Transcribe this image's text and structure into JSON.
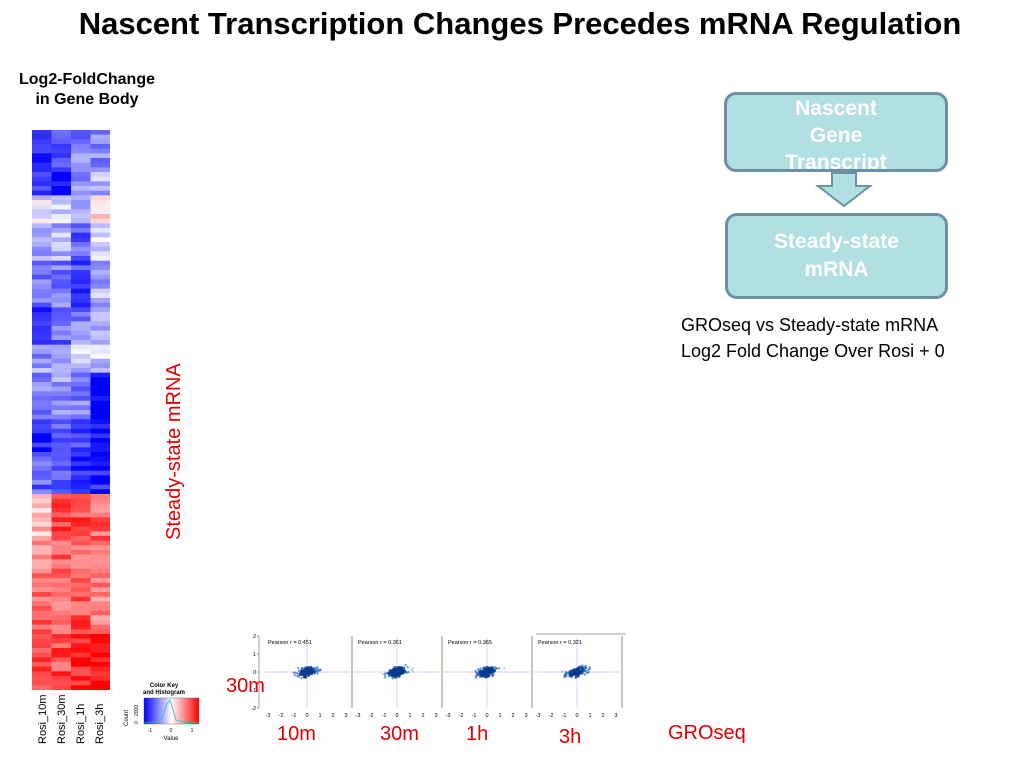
{
  "title": "Nascent Transcription Changes Precedes mRNA Regulation",
  "heatmap": {
    "title_line1": "Log2-FoldChange",
    "title_line2": "in Gene Body",
    "column_labels": [
      "Rosi_10m",
      "Rosi_30m",
      "Rosi_1h",
      "Rosi_3h"
    ]
  },
  "y_axis_label": "Steady-state mRNA",
  "flow": {
    "box1_lines": [
      "Nascent",
      "Gene",
      "Transcript"
    ],
    "box2_lines": [
      "Steady-state",
      "mRNA"
    ]
  },
  "caption": {
    "line1": "GROseq vs Steady-state mRNA",
    "line2": "Log2 Fold Change Over Rosi + 0"
  },
  "row_label": "30m",
  "x_time_labels": [
    "10m",
    "30m",
    "1h",
    "3h"
  ],
  "x_axis_label": "GROseq",
  "color_key": {
    "title_line1": "Color Key",
    "title_line2": "and Histogram",
    "ylabel": "Count",
    "y_ticks": [
      "0",
      "2000"
    ],
    "x_ticks": [
      "-1",
      "0",
      "1"
    ],
    "xlabel": "Value"
  },
  "colors": {
    "low": "#0000ff",
    "mid": "#ffffff",
    "high": "#ff0000",
    "accent_text": "#e00000",
    "box_fill": "#b2dfe2",
    "box_border": "#6b8fa3"
  },
  "chart_data": [
    {
      "type": "heatmap",
      "title": "Log2-FoldChange in Gene Body",
      "columns": [
        "Rosi_10m",
        "Rosi_30m",
        "Rosi_1h",
        "Rosi_3h"
      ],
      "value_range": [
        -1,
        1
      ],
      "row_blocks": [
        {
          "rows": 8,
          "values": [
            -0.8,
            -0.6,
            -0.5,
            -0.5
          ]
        },
        {
          "rows": 6,
          "values": [
            -0.7,
            -1.0,
            -0.4,
            -0.3
          ]
        },
        {
          "rows": 6,
          "values": [
            -0.1,
            -0.2,
            -0.4,
            0.1
          ]
        },
        {
          "rows": 8,
          "values": [
            -0.3,
            -0.3,
            -0.6,
            -0.2
          ]
        },
        {
          "rows": 10,
          "values": [
            -0.5,
            -0.5,
            -0.7,
            -0.3
          ]
        },
        {
          "rows": 8,
          "values": [
            -0.8,
            -0.6,
            -0.5,
            -0.4
          ]
        },
        {
          "rows": 6,
          "values": [
            -0.4,
            -0.3,
            -0.2,
            -0.2
          ]
        },
        {
          "rows": 10,
          "values": [
            -0.5,
            -0.4,
            -0.5,
            -1.0
          ]
        },
        {
          "rows": 8,
          "values": [
            -0.9,
            -0.7,
            -0.7,
            -1.0
          ]
        },
        {
          "rows": 8,
          "values": [
            -0.6,
            -0.7,
            -0.8,
            -0.9
          ]
        },
        {
          "rows": 10,
          "values": [
            0.3,
            0.8,
            0.7,
            0.6
          ]
        },
        {
          "rows": 10,
          "values": [
            0.5,
            0.6,
            0.6,
            0.5
          ]
        },
        {
          "rows": 10,
          "values": [
            0.6,
            0.5,
            0.7,
            0.5
          ]
        },
        {
          "rows": 12,
          "values": [
            0.8,
            0.7,
            0.9,
            1.0
          ]
        }
      ]
    },
    {
      "type": "scatter",
      "xlabel": "GROseq",
      "ylabel": "Steady-state mRNA",
      "xlim": [
        -3,
        3
      ],
      "ylim": [
        -2,
        2
      ],
      "x_ticks": [
        "-3",
        "-2",
        "-1",
        "0",
        "1",
        "2",
        "3"
      ],
      "y_ticks": [
        "-2",
        "-1",
        "0",
        "1",
        "2"
      ],
      "panels": [
        {
          "name": "10m",
          "row": "30m",
          "pearson_label": "Pearson r = 0.451"
        },
        {
          "name": "30m",
          "row": "30m",
          "pearson_label": "Pearson r = 0.361"
        },
        {
          "name": "1h",
          "row": "30m",
          "pearson_label": "Pearson r = 0.365"
        },
        {
          "name": "3h",
          "row": "30m",
          "pearson_label": "Pearson r = 0.321"
        }
      ]
    }
  ]
}
